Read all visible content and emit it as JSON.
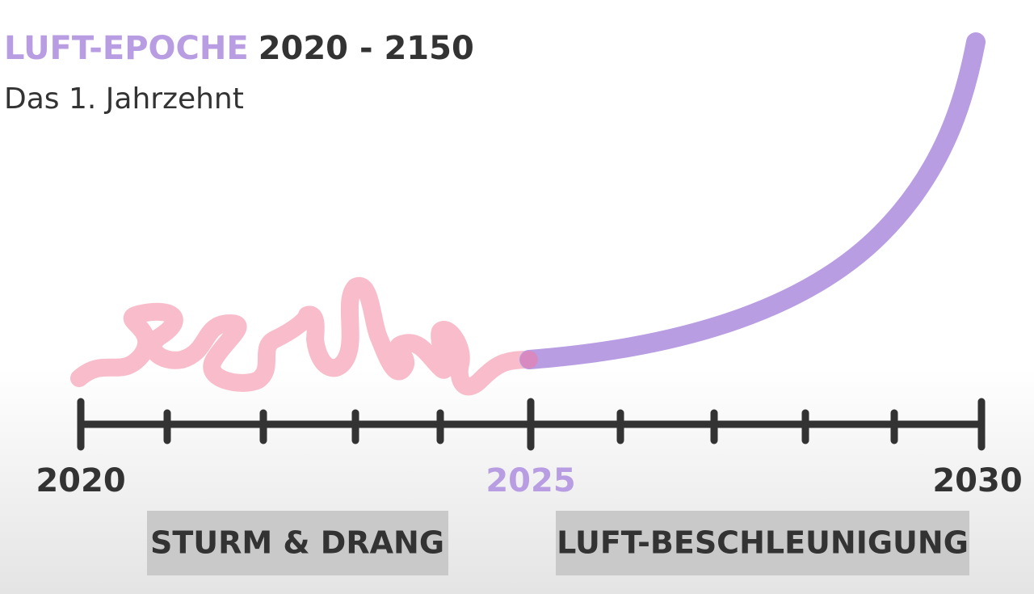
{
  "header": {
    "title_highlight": "LUFT-EPOCHE",
    "title_range": "2020 - 2150",
    "subtitle": "Das 1. Jahrzehnt"
  },
  "timeline": {
    "labels": [
      "2020",
      "2025",
      "2030"
    ]
  },
  "phases": [
    "STURM & DRANG",
    "LUFT-BESCHLEUNIGUNG"
  ]
}
